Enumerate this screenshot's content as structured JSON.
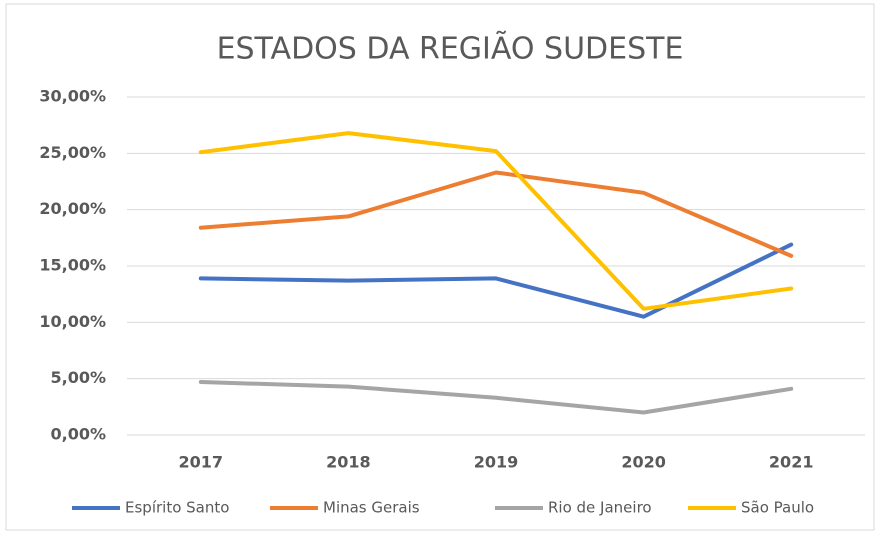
{
  "chart_data": {
    "type": "line",
    "title": "ESTADOS DA REGIÃO SUDESTE",
    "categories": [
      "2017",
      "2018",
      "2019",
      "2020",
      "2021"
    ],
    "series": [
      {
        "name": "Espírito Santo",
        "color": "#4472c4",
        "values": [
          13.9,
          13.7,
          13.9,
          10.5,
          16.9
        ]
      },
      {
        "name": "Minas Gerais",
        "color": "#ed7d31",
        "values": [
          18.4,
          19.4,
          23.3,
          21.5,
          15.9
        ]
      },
      {
        "name": "Rio de Janeiro",
        "color": "#a5a5a5",
        "values": [
          4.7,
          4.3,
          3.3,
          2.0,
          4.1
        ]
      },
      {
        "name": "São Paulo",
        "color": "#ffc000",
        "values": [
          25.1,
          26.8,
          25.2,
          11.2,
          13.0
        ]
      }
    ],
    "ylim": [
      0,
      30
    ],
    "yticks": [
      {
        "value": 0,
        "label": "0,00%"
      },
      {
        "value": 5,
        "label": "5,00%"
      },
      {
        "value": 10,
        "label": "10,00%"
      },
      {
        "value": 15,
        "label": "15,00%"
      },
      {
        "value": 20,
        "label": "20,00%"
      },
      {
        "value": 25,
        "label": "25,00%"
      },
      {
        "value": 30,
        "label": "30,00%"
      }
    ],
    "grid": true,
    "legend": "bottom"
  }
}
